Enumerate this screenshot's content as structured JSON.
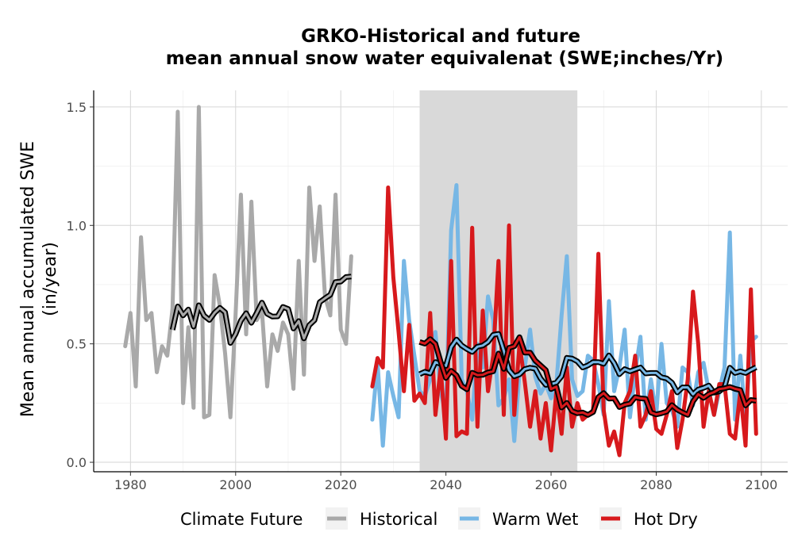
{
  "chart_data": {
    "type": "line",
    "title": "GRKO-Historical and future",
    "subtitle": "mean annual snow water equivalenat (SWE;inches/Yr)",
    "xlabel": "",
    "ylabel": "Mean annual accumulated SWE",
    "ylabel_unit": "(in/year)",
    "xlim": [
      1973,
      2105
    ],
    "ylim": [
      -0.04,
      1.57
    ],
    "xticks": [
      1980,
      2000,
      2020,
      2040,
      2060,
      2080,
      2100
    ],
    "yticks": [
      0.0,
      0.5,
      1.0,
      1.5
    ],
    "ytick_labels": [
      "0.0",
      "0.5",
      "1.0",
      "1.5"
    ],
    "grid": true,
    "shaded_period": [
      2035,
      2065
    ],
    "legend": {
      "title": "Climate Future",
      "position": "bottom",
      "entries": [
        "Historical",
        "Warm Wet",
        "Hot Dry"
      ]
    },
    "series": [
      {
        "name": "Historical",
        "color": "#a9a9a9",
        "x": [
          1979,
          1980,
          1981,
          1982,
          1983,
          1984,
          1985,
          1986,
          1987,
          1988,
          1989,
          1990,
          1991,
          1992,
          1993,
          1994,
          1995,
          1996,
          1997,
          1998,
          1999,
          2000,
          2001,
          2002,
          2003,
          2004,
          2005,
          2006,
          2007,
          2008,
          2009,
          2010,
          2011,
          2012,
          2013,
          2014,
          2015,
          2016,
          2017,
          2018,
          2019,
          2020,
          2021,
          2022
        ],
        "y": [
          0.49,
          0.63,
          0.32,
          0.95,
          0.6,
          0.63,
          0.38,
          0.49,
          0.45,
          0.65,
          1.48,
          0.25,
          0.57,
          0.23,
          1.5,
          0.19,
          0.2,
          0.79,
          0.66,
          0.46,
          0.19,
          0.63,
          1.13,
          0.54,
          1.1,
          0.6,
          0.64,
          0.32,
          0.54,
          0.47,
          0.59,
          0.54,
          0.31,
          0.85,
          0.37,
          1.16,
          0.85,
          1.08,
          0.7,
          0.62,
          1.13,
          0.56,
          0.5,
          0.87
        ]
      },
      {
        "name": "Warm Wet",
        "color": "#77b7e5",
        "x": [
          2026,
          2027,
          2028,
          2029,
          2030,
          2031,
          2032,
          2033,
          2034,
          2035,
          2036,
          2037,
          2038,
          2039,
          2040,
          2041,
          2042,
          2043,
          2044,
          2045,
          2046,
          2047,
          2048,
          2049,
          2050,
          2051,
          2052,
          2053,
          2054,
          2055,
          2056,
          2057,
          2058,
          2059,
          2060,
          2061,
          2062,
          2063,
          2064,
          2065,
          2066,
          2067,
          2068,
          2069,
          2070,
          2071,
          2072,
          2073,
          2074,
          2075,
          2076,
          2077,
          2078,
          2079,
          2080,
          2081,
          2082,
          2083,
          2084,
          2085,
          2086,
          2087,
          2088,
          2089,
          2090,
          2091,
          2092,
          2093,
          2094,
          2095,
          2096,
          2097,
          2098,
          2099
        ],
        "y": [
          0.18,
          0.42,
          0.07,
          0.38,
          0.28,
          0.19,
          0.85,
          0.6,
          0.45,
          0.3,
          0.28,
          0.35,
          0.55,
          0.3,
          0.2,
          0.98,
          1.17,
          0.35,
          0.3,
          0.18,
          0.5,
          0.4,
          0.7,
          0.6,
          0.24,
          0.27,
          0.35,
          0.09,
          0.38,
          0.4,
          0.56,
          0.36,
          0.29,
          0.33,
          0.27,
          0.33,
          0.62,
          0.87,
          0.35,
          0.28,
          0.3,
          0.45,
          0.43,
          0.33,
          0.2,
          0.68,
          0.3,
          0.4,
          0.56,
          0.19,
          0.38,
          0.53,
          0.18,
          0.35,
          0.2,
          0.5,
          0.25,
          0.22,
          0.15,
          0.4,
          0.38,
          0.24,
          0.38,
          0.42,
          0.3,
          0.2,
          0.3,
          0.4,
          0.97,
          0.18,
          0.45,
          0.17,
          0.51,
          0.53
        ]
      },
      {
        "name": "Hot Dry",
        "color": "#d7191c",
        "x": [
          2026,
          2027,
          2028,
          2029,
          2030,
          2031,
          2032,
          2033,
          2034,
          2035,
          2036,
          2037,
          2038,
          2039,
          2040,
          2041,
          2042,
          2043,
          2044,
          2045,
          2046,
          2047,
          2048,
          2049,
          2050,
          2051,
          2052,
          2053,
          2054,
          2055,
          2056,
          2057,
          2058,
          2059,
          2060,
          2061,
          2062,
          2063,
          2064,
          2065,
          2066,
          2067,
          2068,
          2069,
          2070,
          2071,
          2072,
          2073,
          2074,
          2075,
          2076,
          2077,
          2078,
          2079,
          2080,
          2081,
          2082,
          2083,
          2084,
          2085,
          2086,
          2087,
          2088,
          2089,
          2090,
          2091,
          2092,
          2093,
          2094,
          2095,
          2096,
          2097,
          2098,
          2099
        ],
        "y": [
          0.32,
          0.44,
          0.4,
          1.16,
          0.78,
          0.55,
          0.3,
          0.58,
          0.26,
          0.29,
          0.25,
          0.63,
          0.2,
          0.4,
          0.1,
          0.85,
          0.11,
          0.13,
          0.12,
          0.99,
          0.15,
          0.64,
          0.3,
          0.45,
          0.85,
          0.2,
          1.0,
          0.2,
          0.5,
          0.34,
          0.15,
          0.3,
          0.1,
          0.25,
          0.05,
          0.3,
          0.12,
          0.4,
          0.15,
          0.25,
          0.18,
          0.2,
          0.22,
          0.88,
          0.22,
          0.07,
          0.13,
          0.03,
          0.25,
          0.3,
          0.45,
          0.15,
          0.2,
          0.3,
          0.14,
          0.12,
          0.2,
          0.3,
          0.06,
          0.18,
          0.35,
          0.72,
          0.5,
          0.15,
          0.3,
          0.2,
          0.33,
          0.33,
          0.12,
          0.1,
          0.3,
          0.07,
          0.73,
          0.12
        ]
      }
    ],
    "rolling_mean_window": 10,
    "rolling_mean_color": "#000000"
  }
}
